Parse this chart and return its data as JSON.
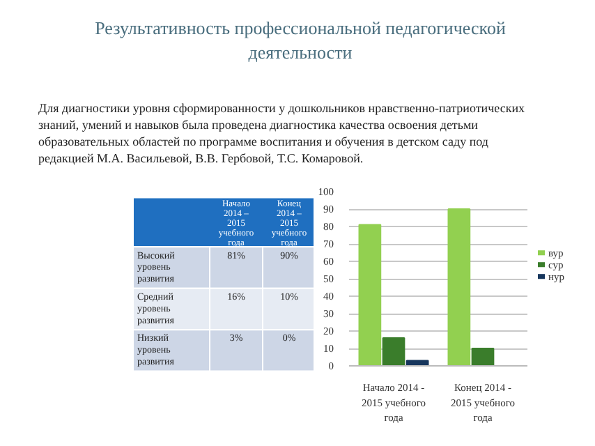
{
  "chart_data": {
    "type": "bar",
    "title": "Результативность профессиональной педагогической деятельности",
    "annotations": [
      "Для диагностики уровня сформированности у дошкольников нравственно-патриотических знаний, умений и навыков была проведена диагностика качества освоения детьми образовательных областей по программе воспитания и обучения в детском саду под редакцией М.А. Васильевой, В.В. Гербовой, Т.С. Комаровой.",
      "Начало 2014 – 2015 учебного года",
      "Конец 2014 – 2015 учебного года",
      "Высокий уровень развития",
      "Средний уровень развития",
      "Низкий уровень развития",
      "81%",
      "90%",
      "16%",
      "10%",
      "3%",
      "0%"
    ],
    "categories": [
      "Начало 2014 - 2015 учебного года",
      "Конец 2014 - 2015 учебного года"
    ],
    "series": [
      {
        "name": "вур",
        "color": "#92d050",
        "values": [
          81,
          90
        ]
      },
      {
        "name": "сур",
        "color": "#3a7d2b",
        "values": [
          16,
          10
        ]
      },
      {
        "name": "нур",
        "color": "#17365d",
        "values": [
          3,
          0
        ]
      }
    ],
    "ylim": [
      0,
      100
    ],
    "yticks": [
      0,
      10,
      20,
      30,
      40,
      50,
      60,
      70,
      80,
      90,
      100
    ],
    "grid": "y",
    "legend": "right"
  }
}
